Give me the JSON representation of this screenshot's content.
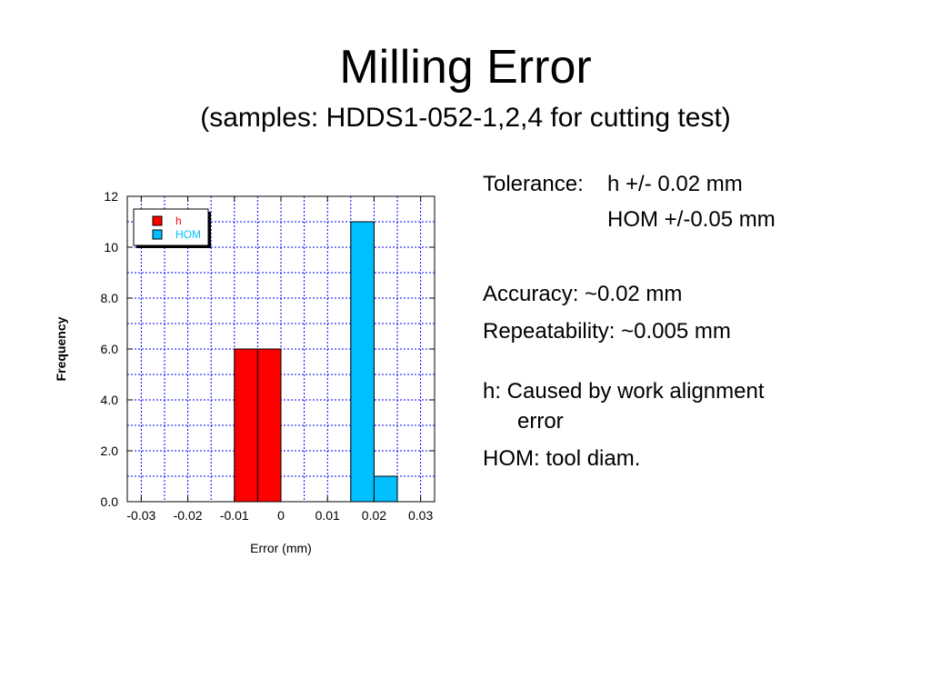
{
  "slide": {
    "title": "Milling Error",
    "subtitle": "(samples: HDDS1-052-1,2,4 for cutting test)"
  },
  "notes": {
    "tolerance_label": "Tolerance:",
    "tolerance_h": "h +/- 0.02 mm",
    "tolerance_hom": "HOM +/-0.05 mm",
    "accuracy": "Accuracy: ~0.02 mm",
    "repeatability": "Repeatability: ~0.005 mm",
    "h_cause_line1": "h: Caused by work alignment",
    "h_cause_line2": "error",
    "hom_cause": "HOM: tool diam."
  },
  "chart_data": {
    "type": "bar",
    "xlabel": "Error (mm)",
    "ylabel": "Frequency",
    "xlim": [
      -0.033,
      0.033
    ],
    "ylim": [
      0,
      12
    ],
    "xticks": [
      -0.03,
      -0.02,
      -0.01,
      0,
      0.01,
      0.02,
      0.03
    ],
    "xtick_labels": [
      "-0.03",
      "-0.02",
      "-0.01",
      "0",
      "0.01",
      "0.02",
      "0.03"
    ],
    "yticks": [
      0,
      2,
      4,
      6,
      8,
      10,
      12
    ],
    "ytick_labels": [
      "0.0",
      "2.0",
      "4.0",
      "6.0",
      "8.0",
      "10",
      "12"
    ],
    "bin_width": 0.005,
    "grid": true,
    "legend_position": "top-left",
    "series": [
      {
        "name": "h",
        "color": "#ff0000",
        "bins": [
          {
            "x0": -0.01,
            "x1": -0.005,
            "value": 6
          },
          {
            "x0": -0.005,
            "x1": 0.0,
            "value": 6
          }
        ]
      },
      {
        "name": "HOM",
        "color": "#00bfff",
        "bins": [
          {
            "x0": 0.015,
            "x1": 0.02,
            "value": 11
          },
          {
            "x0": 0.02,
            "x1": 0.025,
            "value": 1
          }
        ]
      }
    ]
  },
  "colors": {
    "grid": "#0000ff",
    "axes": "#000000",
    "background": "#ffffff"
  }
}
